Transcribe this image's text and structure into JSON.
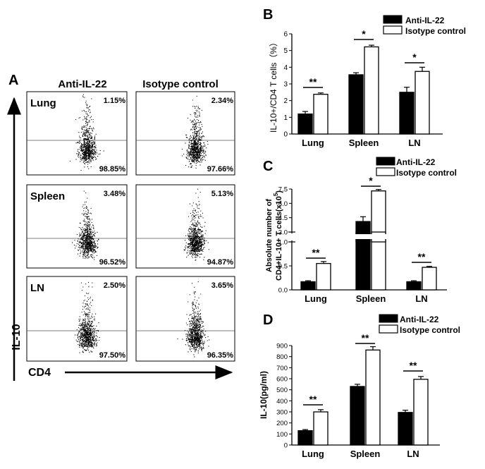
{
  "panel_a": {
    "letter": "A",
    "col_labels": [
      "Anti-IL-22",
      "Isotype control"
    ],
    "row_labels": [
      "Lung",
      "Spleen",
      "LN"
    ],
    "upper_pct": [
      [
        "1.15%",
        "2.34%"
      ],
      [
        "3.48%",
        "5.13%"
      ],
      [
        "2.50%",
        "3.65%"
      ]
    ],
    "lower_pct": [
      [
        "98.85%",
        "97.66%"
      ],
      [
        "96.52%",
        "94.87%"
      ],
      [
        "97.50%",
        "96.35%"
      ]
    ],
    "y_axis_label": "IL-10",
    "x_axis_label": "CD4"
  },
  "chart_data": [
    {
      "panel": "B",
      "type": "bar",
      "categories": [
        "Lung",
        "Spleen",
        "LN"
      ],
      "series": [
        {
          "name": "Anti-IL-22",
          "values": [
            1.2,
            3.55,
            2.5
          ],
          "errors": [
            0.15,
            0.12,
            0.3
          ],
          "color": "#000000"
        },
        {
          "name": "Isotype control",
          "values": [
            2.38,
            5.22,
            3.75
          ],
          "errors": [
            0.08,
            0.1,
            0.25
          ],
          "color": "#ffffff"
        }
      ],
      "ylabel": "IL-10+/CD4 T cells（%）",
      "ylim": [
        0,
        6
      ],
      "yticks": [
        0,
        1,
        2,
        3,
        4,
        5,
        6
      ],
      "significance": [
        "**",
        "*",
        "*"
      ],
      "legend_position": "top-right"
    },
    {
      "panel": "C",
      "type": "bar",
      "broken_axis": true,
      "categories": [
        "Lung",
        "Spleen",
        "LN"
      ],
      "series": [
        {
          "name": "Anti-IL-22",
          "values": [
            0.17,
            4.1,
            0.17
          ],
          "errors": [
            0.02,
            0.5,
            0.02
          ],
          "color": "#000000"
        },
        {
          "name": "Isotype control",
          "values": [
            0.55,
            7.3,
            0.47
          ],
          "errors": [
            0.04,
            0.15,
            0.02
          ],
          "color": "#ffffff"
        }
      ],
      "ylabel_line1": "Absolute number of",
      "ylabel_line2": "CD4+IL-10+ T cells(x10",
      "ylabel_sup": "5",
      "ylabel_end": ")",
      "y_lower_ticks": [
        "0.0",
        "0.5",
        "1.0"
      ],
      "y_upper_ticks": [
        "3.0",
        "4.5",
        "6.0",
        "7.5"
      ],
      "y_lower_range": [
        0,
        1.0
      ],
      "y_upper_range": [
        3.0,
        7.5
      ],
      "significance": [
        "**",
        "*",
        "**"
      ],
      "legend_position": "top-right"
    },
    {
      "panel": "D",
      "type": "bar",
      "categories": [
        "Lung",
        "Spleen",
        "LN"
      ],
      "series": [
        {
          "name": "Anti-IL-22",
          "values": [
            130,
            530,
            295
          ],
          "errors": [
            10,
            20,
            20
          ],
          "color": "#000000"
        },
        {
          "name": "Isotype control",
          "values": [
            300,
            860,
            595
          ],
          "errors": [
            20,
            30,
            25
          ],
          "color": "#ffffff"
        }
      ],
      "ylabel": "IL-10(pg/ml)",
      "ylim": [
        0,
        900
      ],
      "yticks": [
        0,
        100,
        200,
        300,
        400,
        500,
        600,
        700,
        800,
        900
      ],
      "significance": [
        "**",
        "**",
        "**"
      ],
      "legend_position": "top-right"
    }
  ]
}
